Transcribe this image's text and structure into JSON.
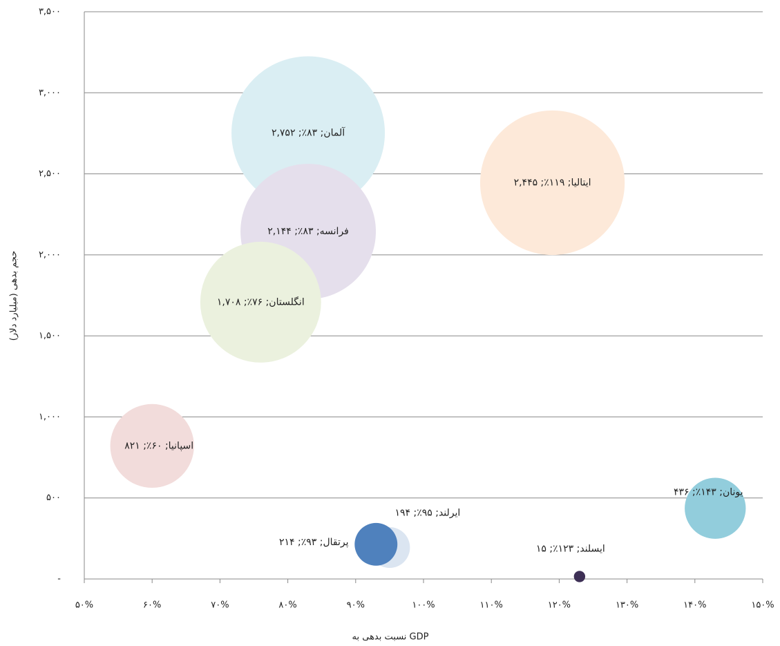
{
  "chart_data": {
    "type": "bubble",
    "x_label": "نسبت بدهی به GDP",
    "y_label": "حجم بدهی (میلیارد دلار)",
    "categories": [
      "آلمان",
      "ایتالیا",
      "فرانسه",
      "انگلستان",
      "اسپانیا",
      "یونان",
      "ایرلند",
      "پرتقال",
      "ایسلند"
    ],
    "x": [
      83,
      119,
      83,
      76,
      60,
      143,
      95,
      93,
      123
    ],
    "values": [
      2752,
      2445,
      2144,
      1708,
      821,
      436,
      194,
      214,
      15
    ],
    "sizes": [
      2752,
      2445,
      2144,
      1708,
      821,
      436,
      194,
      214,
      15
    ],
    "value_labels": [
      "آلمان; ۸۳٪; ۲,۷۵۲",
      "ایتالیا; ۱۱۹٪; ۲,۴۴۵",
      "فرانسه; ۸۳٪; ۲,۱۴۴",
      "انگلستان; ۷۶٪; ۱,۷۰۸",
      "اسپانیا; ۶۰٪; ۸۲۱",
      "یونان; ۱۴۳٪; ۴۳۶",
      "ایرلند; ۹۵٪; ۱۹۴",
      "پرتقال; ۹۳٪; ۲۱۴",
      "ایسلند; ۱۲۳٪; ۱۵"
    ],
    "colors": [
      "#daeef3",
      "#fde9d9",
      "#e5dfec",
      "#ebf1de",
      "#f2dcdb",
      "#92cddc",
      "#dbe5f1",
      "#4f81bd",
      "#3d2f55"
    ],
    "xlim": [
      50,
      150
    ],
    "xticks": [
      {
        "value": 50,
        "label": "۵۰%"
      },
      {
        "value": 60,
        "label": "۶۰%"
      },
      {
        "value": 70,
        "label": "۷۰%"
      },
      {
        "value": 80,
        "label": "۸۰%"
      },
      {
        "value": 90,
        "label": "۹۰%"
      },
      {
        "value": 100,
        "label": "۱۰۰%"
      },
      {
        "value": 110,
        "label": "۱۱۰%"
      },
      {
        "value": 120,
        "label": "۱۲۰%"
      },
      {
        "value": 130,
        "label": "۱۳۰%"
      },
      {
        "value": 140,
        "label": "۱۴۰%"
      },
      {
        "value": 150,
        "label": "۱۵۰%"
      }
    ],
    "ylim": [
      0,
      3500
    ],
    "yticks": [
      {
        "value": 0,
        "label": "-"
      },
      {
        "value": 500,
        "label": "۵۰۰"
      },
      {
        "value": 1000,
        "label": "۱,۰۰۰"
      },
      {
        "value": 1500,
        "label": "۱,۵۰۰"
      },
      {
        "value": 2000,
        "label": "۲,۰۰۰"
      },
      {
        "value": 2500,
        "label": "۲,۵۰۰"
      },
      {
        "value": 3000,
        "label": "۳,۰۰۰"
      },
      {
        "value": 3500,
        "label": "۳,۵۰۰"
      }
    ],
    "grid": true
  }
}
